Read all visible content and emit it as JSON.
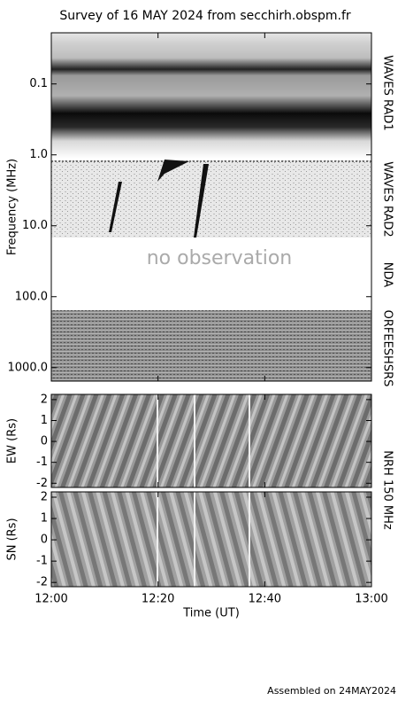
{
  "title": "Survey of 16 MAY 2024 from secchirh.obspm.fr",
  "footer": "Assembled on 24MAY2024",
  "chart_data": [
    {
      "type": "spectrogram",
      "ylabel": "Frequency (MHz)",
      "log_scale": true,
      "inverted": true,
      "ylim": [
        0.019,
        1550
      ],
      "yticks": [
        0.1,
        {
          "value": 1,
          "label": "1.0"
        },
        {
          "value": 10,
          "label": "10.0"
        },
        {
          "value": 100,
          "label": "100.0"
        },
        {
          "value": 1000,
          "label": "1000.0"
        }
      ],
      "bands": [
        "WAVES RAD1",
        "WAVES RAD2",
        "NDA",
        "ORFEESHSRS"
      ],
      "annotation": "no observation"
    },
    {
      "type": "image",
      "ylabel": "EW (Rs)",
      "ylim": [
        -2.2,
        2.25
      ],
      "yticks": [
        -2,
        -1,
        0,
        1,
        2
      ]
    },
    {
      "type": "image",
      "ylabel": "SN (Rs)",
      "ylim": [
        -2.2,
        2.25
      ],
      "yticks": [
        -2,
        -1,
        0,
        1,
        2
      ],
      "panel_label": "NRH 150 MHz",
      "xlabel": "Time (UT)",
      "xlim": [
        "12:00",
        "13:00"
      ],
      "xticks": [
        "12:00",
        "12:20",
        "12:40",
        "13:00"
      ]
    }
  ]
}
